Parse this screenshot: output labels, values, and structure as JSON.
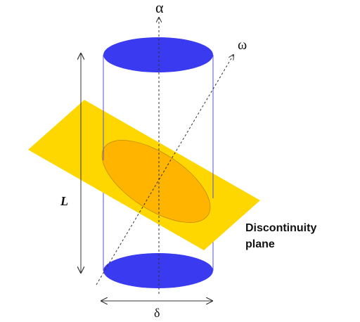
{
  "labels": {
    "alpha": "α",
    "omega": "ω",
    "length": "L",
    "delta": "δ",
    "plane_line1": "Discontinuity",
    "plane_line2": "plane"
  },
  "colors": {
    "ellipse_caps": "#3a3af0",
    "plane": "#ffd700",
    "intersection": "#ffb400",
    "cylinder_outline": "#5050d8",
    "axis_lines": "#333333",
    "text": "#111111"
  }
}
